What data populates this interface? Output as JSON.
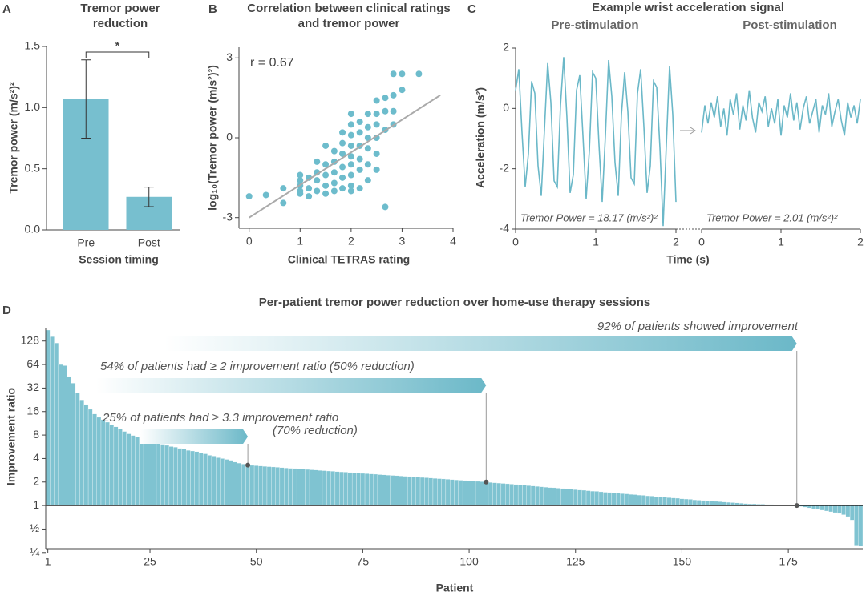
{
  "chart_data": [
    {
      "type": "bar",
      "panel": "A",
      "title": "Tremor power reduction",
      "xlabel": "Session timing",
      "ylabel": "Tremor power (m/s²)²",
      "categories": [
        "Pre",
        "Post"
      ],
      "values": [
        1.07,
        0.27
      ],
      "errors": [
        0.32,
        0.08
      ],
      "color": "#77bfcf",
      "annotation": "*",
      "ylim": [
        0,
        1.5
      ],
      "yticks": [
        {
          "value": 0,
          "label": "0.0"
        },
        0.5,
        {
          "value": 1,
          "label": "1.0"
        },
        1.5
      ]
    },
    {
      "type": "scatter",
      "panel": "B",
      "title": "Correlation between clinical ratings and tremor power",
      "xlabel": "Clinical TETRAS rating",
      "ylabel": "log₁₀(Tremor power (m/s²)²)",
      "annotation": "r = 0.67",
      "color": "#6dbccc",
      "x": [
        0,
        0.33,
        0.67,
        0.67,
        1,
        1,
        1,
        1,
        1,
        1.17,
        1.17,
        1.17,
        1.33,
        1.33,
        1.33,
        1.33,
        1.5,
        1.5,
        1.5,
        1.5,
        1.5,
        1.67,
        1.67,
        1.67,
        1.67,
        1.67,
        1.83,
        1.83,
        1.83,
        1.83,
        1.83,
        1.83,
        2,
        2,
        2,
        2,
        2,
        2,
        2,
        2,
        2,
        2.17,
        2.17,
        2.17,
        2.17,
        2.17,
        2.17,
        2.33,
        2.33,
        2.33,
        2.33,
        2.33,
        2.33,
        2.5,
        2.5,
        2.5,
        2.5,
        2.5,
        2.5,
        2.67,
        2.67,
        2.67,
        2.67,
        2.83,
        2.83,
        2.83,
        2.83,
        3,
        3,
        3.33
      ],
      "values": [
        -2.2,
        -2.15,
        -2.45,
        -1.9,
        -1.4,
        -1.6,
        -1.8,
        -2.0,
        -2.1,
        -1.5,
        -1.9,
        -2.2,
        -0.9,
        -1.3,
        -1.6,
        -2.0,
        -1.0,
        -1.4,
        -1.8,
        -2.1,
        -0.3,
        -0.5,
        -0.9,
        -1.3,
        -1.7,
        -2.0,
        -0.2,
        -0.6,
        -1.1,
        -1.5,
        -1.9,
        0.2,
        0.9,
        0.5,
        0.1,
        -0.3,
        -0.7,
        -1.0,
        -1.4,
        -1.8,
        -2.0,
        0.6,
        0.2,
        -0.3,
        -0.8,
        -1.2,
        -1.9,
        0.9,
        0.4,
        0,
        -0.4,
        -1.0,
        -1.6,
        1.4,
        0.9,
        0.5,
        0,
        -0.6,
        -1.2,
        1.5,
        1.0,
        0.3,
        -2.6,
        2.4,
        1.6,
        1.0,
        0.5,
        2.4,
        1.8,
        2.4
      ],
      "trend_line": {
        "x": [
          0,
          3.75
        ],
        "values": [
          -3,
          1.6
        ],
        "color": "#aaaaaa"
      },
      "xlim": [
        -0.2,
        4
      ],
      "xticks": [
        0,
        1,
        2,
        3,
        4
      ],
      "ylim": [
        -3.4,
        3.4
      ],
      "yticks": [
        -3,
        0,
        3
      ]
    },
    {
      "type": "line",
      "panel": "C",
      "title": "Example wrist acceleration signal",
      "xlabel": "Time (s)",
      "ylabel": "Acceleration (m/s²)",
      "x": [
        0,
        0.04,
        0.08,
        0.12,
        0.16,
        0.2,
        0.24,
        0.28,
        0.32,
        0.36,
        0.4,
        0.44,
        0.48,
        0.52,
        0.56,
        0.6,
        0.64,
        0.68,
        0.72,
        0.76,
        0.8,
        0.84,
        0.88,
        0.92,
        0.96,
        1,
        1.04,
        1.08,
        1.12,
        1.16,
        1.2,
        1.24,
        1.28,
        1.32,
        1.36,
        1.4,
        1.44,
        1.48,
        1.52,
        1.56,
        1.6,
        1.64,
        1.68,
        1.72,
        1.76,
        1.8,
        1.84,
        1.88,
        1.92,
        1.96,
        2
      ],
      "series": [
        {
          "name": "Pre-stimulation",
          "color": "#6bb8c8",
          "annotation": "Tremor Power = 18.17 (m/s²)²",
          "values": [
            0.6,
            1.3,
            -0.8,
            -2.6,
            -1.5,
            0.9,
            0.5,
            -1.9,
            -2.9,
            -0.7,
            1.5,
            0.2,
            -2.4,
            -2.6,
            0.1,
            1.7,
            -0.3,
            -2.8,
            -2.2,
            0.6,
            1.1,
            -0.9,
            -3.0,
            -1.4,
            1.2,
            1.0,
            -1.2,
            -3.1,
            -0.9,
            1.6,
            0.4,
            -1.8,
            -2.9,
            -0.2,
            1.2,
            -0.1,
            -2.3,
            -2.5,
            0.5,
            1.3,
            -0.6,
            -2.8,
            -1.9,
            0.9,
            0.7,
            -1.3,
            -3.9,
            -1.2,
            1.4,
            -0.2,
            -3.1
          ]
        },
        {
          "name": "Post-stimulation",
          "color": "#6bb8c8",
          "annotation": "Tremor Power = 2.01 (m/s²)²",
          "values": [
            -0.8,
            0.1,
            -0.5,
            0.2,
            -0.3,
            0.4,
            -0.6,
            0.0,
            -0.9,
            0.3,
            -0.2,
            0.5,
            -0.7,
            0.1,
            -0.4,
            0.6,
            -0.3,
            -0.8,
            0.2,
            -0.1,
            0.4,
            -0.6,
            0.0,
            -0.5,
            0.3,
            -0.9,
            0.1,
            -0.3,
            0.5,
            -0.4,
            0.2,
            -0.7,
            0.0,
            0.4,
            -0.5,
            -0.1,
            0.3,
            -0.8,
            0.1,
            -0.2,
            0.5,
            -0.6,
            -0.1,
            0.3,
            -0.4,
            -0.9,
            0.2,
            -0.3,
            0.1,
            -0.5,
            0.3
          ]
        }
      ],
      "xlim": [
        0,
        2
      ],
      "xticks": [
        0,
        1,
        2
      ],
      "ylim": [
        -4,
        2
      ],
      "yticks": [
        -4,
        -2,
        0,
        2
      ]
    },
    {
      "type": "bar",
      "panel": "D",
      "title": "Per-patient tremor power reduction over home-use therapy sessions",
      "xlabel": "Patient",
      "ylabel": "Improvement ratio",
      "color": "#7fc3d1",
      "log_scale": true,
      "log_base": 2,
      "x": [
        1,
        2,
        3,
        4,
        5,
        6,
        7,
        8,
        9,
        10,
        11,
        12,
        13,
        14,
        15,
        16,
        17,
        18,
        19,
        20,
        21,
        22,
        23,
        24,
        25,
        26,
        27,
        28,
        29,
        30,
        31,
        32,
        33,
        34,
        35,
        36,
        37,
        38,
        39,
        40,
        41,
        42,
        43,
        44,
        45,
        46,
        47,
        48,
        49,
        50,
        51,
        52,
        53,
        54,
        55,
        56,
        57,
        58,
        59,
        60,
        61,
        62,
        63,
        64,
        65,
        66,
        67,
        68,
        69,
        70,
        71,
        72,
        73,
        74,
        75,
        76,
        77,
        78,
        79,
        80,
        81,
        82,
        83,
        84,
        85,
        86,
        87,
        88,
        89,
        90,
        91,
        92,
        93,
        94,
        95,
        96,
        97,
        98,
        99,
        100,
        101,
        102,
        103,
        104,
        105,
        106,
        107,
        108,
        109,
        110,
        111,
        112,
        113,
        114,
        115,
        116,
        117,
        118,
        119,
        120,
        121,
        122,
        123,
        124,
        125,
        126,
        127,
        128,
        129,
        130,
        131,
        132,
        133,
        134,
        135,
        136,
        137,
        138,
        139,
        140,
        141,
        142,
        143,
        144,
        145,
        146,
        147,
        148,
        149,
        150,
        151,
        152,
        153,
        154,
        155,
        156,
        157,
        158,
        159,
        160,
        161,
        162,
        163,
        164,
        165,
        166,
        167,
        168,
        169,
        170,
        171,
        172,
        173,
        174,
        175,
        176,
        177,
        178,
        179,
        180,
        181,
        182,
        183,
        184,
        185,
        186,
        187,
        188,
        189,
        190,
        191,
        192
      ],
      "values": [
        177,
        146,
        121,
        64,
        62,
        45,
        37,
        28,
        22.6,
        19.7,
        17.1,
        14.9,
        13.5,
        12.6,
        11.7,
        10.9,
        10.2,
        9.5,
        8.9,
        8.3,
        7.9,
        7.6,
        7.3,
        7.0,
        6.7,
        6.5,
        6.3,
        6.1,
        5.9,
        5.7,
        5.6,
        5.4,
        5.3,
        5.1,
        5.0,
        4.9,
        4.7,
        4.6,
        4.4,
        4.3,
        4.1,
        4.0,
        3.9,
        3.8,
        3.6,
        3.5,
        3.4,
        3.3,
        3.27,
        3.24,
        3.21,
        3.18,
        3.15,
        3.12,
        3.09,
        3.06,
        3.03,
        3.0,
        2.98,
        2.95,
        2.92,
        2.9,
        2.87,
        2.85,
        2.82,
        2.8,
        2.77,
        2.75,
        2.72,
        2.7,
        2.68,
        2.65,
        2.63,
        2.61,
        2.58,
        2.56,
        2.54,
        2.52,
        2.49,
        2.47,
        2.45,
        2.43,
        2.41,
        2.39,
        2.37,
        2.35,
        2.33,
        2.31,
        2.29,
        2.27,
        2.25,
        2.23,
        2.21,
        2.19,
        2.17,
        2.15,
        2.13,
        2.11,
        2.09,
        2.08,
        2.06,
        2.04,
        2.02,
        2.0,
        1.98,
        1.96,
        1.94,
        1.92,
        1.9,
        1.88,
        1.86,
        1.84,
        1.82,
        1.8,
        1.78,
        1.76,
        1.74,
        1.72,
        1.7,
        1.69,
        1.67,
        1.65,
        1.63,
        1.62,
        1.6,
        1.58,
        1.57,
        1.55,
        1.53,
        1.52,
        1.5,
        1.48,
        1.47,
        1.45,
        1.44,
        1.42,
        1.41,
        1.39,
        1.38,
        1.36,
        1.35,
        1.33,
        1.32,
        1.3,
        1.29,
        1.28,
        1.26,
        1.25,
        1.24,
        1.22,
        1.21,
        1.2,
        1.18,
        1.17,
        1.16,
        1.15,
        1.14,
        1.13,
        1.12,
        1.11,
        1.1,
        1.09,
        1.08,
        1.07,
        1.06,
        1.05,
        1.05,
        1.04,
        1.04,
        1.03,
        1.03,
        1.02,
        1.02,
        1.01,
        1.01,
        1.0,
        1.0,
        0.97,
        0.95,
        0.93,
        0.91,
        0.89,
        0.87,
        0.85,
        0.83,
        0.81,
        0.79,
        0.76,
        0.72,
        0.65,
        0.31,
        0.3
      ],
      "annotations": [
        {
          "text": [
            "92% of patients showed improvement"
          ],
          "x": 177,
          "y": 1
        },
        {
          "text": [
            "54% of patients had ≥ 2 improvement ratio (50% reduction)"
          ],
          "x": 104,
          "y": 2
        },
        {
          "text": [
            "25% of patients had ≥ 3.3 improvement ratio",
            "(70% reduction)"
          ],
          "x": 48,
          "y": 3.3
        }
      ],
      "xlim": [
        0.5,
        192.5
      ],
      "xticks": [
        1,
        25,
        50,
        75,
        100,
        125,
        150,
        175
      ],
      "ylim": [
        0.28,
        190
      ],
      "yticks": [
        {
          "value": 0.25,
          "label": "¼"
        },
        {
          "value": 0.5,
          "label": "½"
        },
        1,
        2,
        4,
        8,
        16,
        32,
        64,
        128
      ]
    }
  ]
}
